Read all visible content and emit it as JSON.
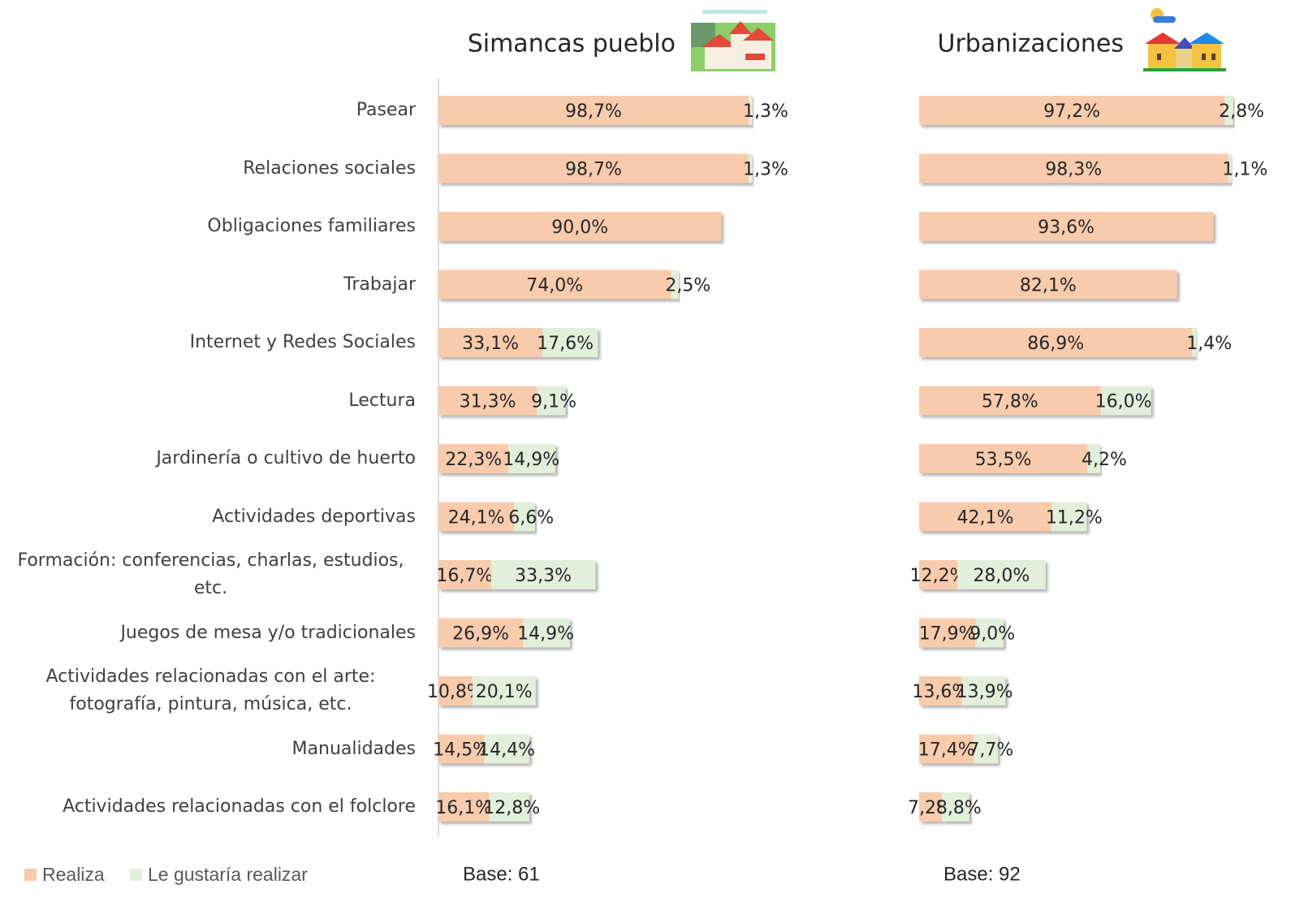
{
  "chart_data": [
    {
      "type": "bar",
      "orientation": "horizontal",
      "stacked": true,
      "title": "Simancas pueblo",
      "note": "Base: 61",
      "xlim": [
        0,
        100
      ],
      "categories": [
        "Pasear",
        "Relaciones sociales",
        "Obligaciones familiares",
        "Trabajar",
        "Internet y Redes Sociales",
        "Lectura",
        "Jardinería o cultivo de huerto",
        "Actividades deportivas",
        "Formación: conferencias, charlas, estudios, etc.",
        "Juegos de mesa y/o tradicionales",
        "Actividades relacionadas con el arte: fotografía, pintura, música, etc.",
        "Manualidades",
        "Actividades relacionadas con el folclore"
      ],
      "series": [
        {
          "name": "Realiza",
          "color": "#f8cbad",
          "values": [
            98.7,
            98.7,
            90.0,
            74.0,
            33.1,
            31.3,
            22.3,
            24.1,
            16.7,
            26.9,
            10.8,
            14.5,
            16.1
          ],
          "value_labels": [
            "98,7%",
            "98,7%",
            "90,0%",
            "74,0%",
            "33,1%",
            "31,3%",
            "22,3%",
            "24,1%",
            "16,7%",
            "26,9%",
            "10,8%",
            "14,5%",
            "16,1%"
          ]
        },
        {
          "name": "Le gustaría realizar",
          "color": "#e2efda",
          "values": [
            1.3,
            1.3,
            null,
            2.5,
            17.6,
            9.1,
            14.9,
            6.6,
            33.3,
            14.9,
            20.1,
            14.4,
            12.8
          ],
          "value_labels": [
            "1,3%",
            "1,3%",
            null,
            "2,5%",
            "17,6%",
            "9,1%",
            "14,9%",
            "6,6%",
            "33,3%",
            "14,9%",
            "20,1%",
            "14,4%",
            "12,8%"
          ]
        }
      ]
    },
    {
      "type": "bar",
      "orientation": "horizontal",
      "stacked": true,
      "title": "Urbanizaciones",
      "note": "Base: 92",
      "xlim": [
        0,
        100
      ],
      "series": [
        {
          "color": "#f8cbad",
          "values": [
            97.2,
            98.3,
            93.6,
            82.1,
            86.9,
            57.8,
            53.5,
            42.1,
            12.2,
            17.9,
            13.6,
            17.4,
            7.2
          ],
          "value_labels": [
            "97,2%",
            "98,3%",
            "93,6%",
            "82,1%",
            "86,9%",
            "57,8%",
            "53,5%",
            "42,1%",
            "12,2%",
            "17,9%",
            "13,6%",
            "17,4%",
            "7,2%"
          ]
        },
        {
          "color": "#e2efda",
          "values": [
            2.8,
            1.1,
            null,
            null,
            1.4,
            16.0,
            4.2,
            11.2,
            28.0,
            9.0,
            13.9,
            7.7,
            8.8
          ],
          "value_labels": [
            "2,8%",
            "1,1%",
            null,
            null,
            "1,4%",
            "16,0%",
            "4,2%",
            "11,2%",
            "28,0%",
            "9,0%",
            "13,9%",
            "7,7%",
            "8,8%"
          ]
        }
      ]
    }
  ]
}
